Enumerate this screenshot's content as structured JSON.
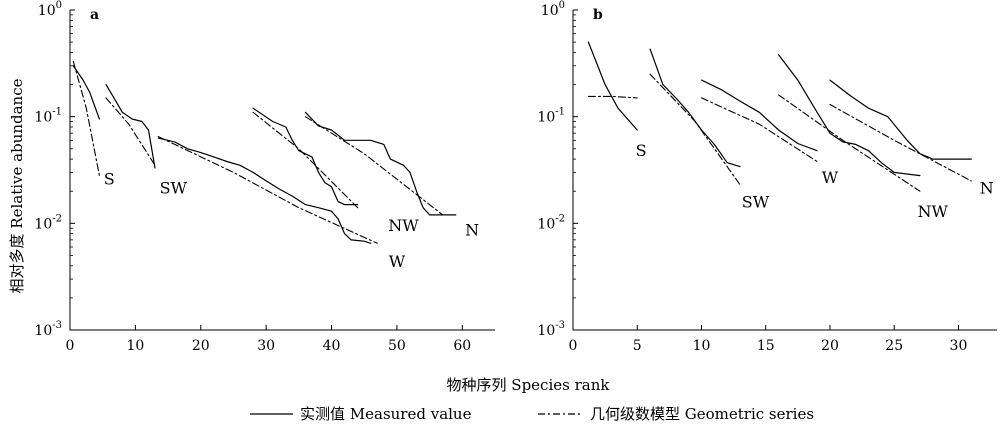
{
  "figure": {
    "ylabel": "相对多度 Relative abundance",
    "xlabel": "物种序列 Species rank",
    "legend": [
      {
        "label": "实测值 Measured value",
        "style": "solid"
      },
      {
        "label": "几何级数模型 Geometric series",
        "style": "dashdot"
      }
    ]
  },
  "chart_data": [
    {
      "type": "line",
      "panel": "a",
      "title": "",
      "xlabel": "物种序列 Species rank",
      "ylabel": "相对多度 Relative abundance",
      "xlim": [
        0,
        65
      ],
      "ylim": [
        0.001,
        1
      ],
      "yscale": "log",
      "xticks": [
        0,
        10,
        20,
        30,
        40,
        50,
        60
      ],
      "yticks": [
        {
          "base": "10",
          "exp": "0"
        },
        {
          "base": "10",
          "exp": "-1"
        },
        {
          "base": "10",
          "exp": "-2"
        },
        {
          "base": "10",
          "exp": "-3"
        }
      ],
      "grid": false,
      "legend_position": "bottom",
      "series": [
        {
          "group": "S",
          "kind": "measured",
          "points": [
            [
              0.5,
              0.3
            ],
            [
              2,
              0.22
            ],
            [
              3,
              0.17
            ],
            [
              4.5,
              0.095
            ]
          ]
        },
        {
          "group": "S",
          "kind": "geometric",
          "points": [
            [
              0.5,
              0.33
            ],
            [
              2.5,
              0.12
            ],
            [
              4.5,
              0.028
            ]
          ]
        },
        {
          "group": "SW",
          "kind": "measured",
          "points": [
            [
              5.5,
              0.2
            ],
            [
              7,
              0.14
            ],
            [
              8,
              0.11
            ],
            [
              9.5,
              0.095
            ],
            [
              11,
              0.09
            ],
            [
              12,
              0.075
            ],
            [
              13,
              0.033
            ]
          ]
        },
        {
          "group": "SW",
          "kind": "geometric",
          "points": [
            [
              5.5,
              0.15
            ],
            [
              9,
              0.085
            ],
            [
              13,
              0.035
            ]
          ]
        },
        {
          "group": "W",
          "kind": "measured",
          "points": [
            [
              13.5,
              0.063
            ],
            [
              16,
              0.058
            ],
            [
              18,
              0.05
            ],
            [
              20,
              0.046
            ],
            [
              22,
              0.042
            ],
            [
              24,
              0.038
            ],
            [
              26,
              0.035
            ],
            [
              28,
              0.03
            ],
            [
              30,
              0.025
            ],
            [
              32,
              0.021
            ],
            [
              34,
              0.018
            ],
            [
              36,
              0.015
            ],
            [
              38,
              0.014
            ],
            [
              40,
              0.013
            ],
            [
              41,
              0.011
            ],
            [
              42,
              0.008
            ],
            [
              43,
              0.007
            ],
            [
              45,
              0.0068
            ],
            [
              46,
              0.0065
            ]
          ]
        },
        {
          "group": "W",
          "kind": "geometric",
          "points": [
            [
              13.5,
              0.065
            ],
            [
              25,
              0.03
            ],
            [
              35,
              0.014
            ],
            [
              47,
              0.0065
            ]
          ]
        },
        {
          "group": "NW",
          "kind": "measured",
          "points": [
            [
              28,
              0.12
            ],
            [
              31,
              0.09
            ],
            [
              33,
              0.08
            ],
            [
              34,
              0.06
            ],
            [
              35,
              0.048
            ],
            [
              37,
              0.042
            ],
            [
              38,
              0.03
            ],
            [
              39,
              0.024
            ],
            [
              40,
              0.022
            ],
            [
              41,
              0.016
            ],
            [
              42,
              0.015
            ],
            [
              43,
              0.015
            ],
            [
              44,
              0.015
            ]
          ]
        },
        {
          "group": "NW",
          "kind": "geometric",
          "points": [
            [
              28,
              0.11
            ],
            [
              35,
              0.05
            ],
            [
              44,
              0.014
            ]
          ]
        },
        {
          "group": "N",
          "kind": "measured",
          "points": [
            [
              36,
              0.11
            ],
            [
              38,
              0.082
            ],
            [
              40,
              0.075
            ],
            [
              42,
              0.06
            ],
            [
              46,
              0.06
            ],
            [
              48,
              0.055
            ],
            [
              49,
              0.04
            ],
            [
              51,
              0.035
            ],
            [
              52,
              0.03
            ],
            [
              53,
              0.02
            ],
            [
              54,
              0.014
            ],
            [
              55,
              0.012
            ],
            [
              59,
              0.012
            ]
          ]
        },
        {
          "group": "N",
          "kind": "geometric",
          "points": [
            [
              36,
              0.1
            ],
            [
              45,
              0.045
            ],
            [
              57,
              0.012
            ]
          ]
        }
      ],
      "labels": [
        {
          "text": "S",
          "x": 6.0,
          "y": 0.023
        },
        {
          "text": "SW",
          "x": 15.8,
          "y": 0.019
        },
        {
          "text": "NW",
          "x": 51.0,
          "y": 0.0085
        },
        {
          "text": "N",
          "x": 61.5,
          "y": 0.0077
        },
        {
          "text": "W",
          "x": 50.0,
          "y": 0.0039
        }
      ]
    },
    {
      "type": "line",
      "panel": "b",
      "title": "",
      "xlabel": "物种序列 Species rank",
      "ylabel": "",
      "xlim": [
        0,
        33
      ],
      "ylim": [
        0.001,
        1
      ],
      "yscale": "log",
      "xticks": [
        0,
        5,
        10,
        15,
        20,
        25,
        30
      ],
      "yticks": [
        {
          "base": "10",
          "exp": "0"
        },
        {
          "base": "10",
          "exp": "-1"
        },
        {
          "base": "10",
          "exp": "-2"
        },
        {
          "base": "10",
          "exp": "-3"
        }
      ],
      "grid": false,
      "legend_position": "bottom",
      "series": [
        {
          "group": "S",
          "kind": "measured",
          "points": [
            [
              1.2,
              0.5
            ],
            [
              2.5,
              0.2
            ],
            [
              3.5,
              0.12
            ],
            [
              5,
              0.075
            ]
          ]
        },
        {
          "group": "S",
          "kind": "geometric",
          "points": [
            [
              1.2,
              0.155
            ],
            [
              3,
              0.155
            ],
            [
              5,
              0.15
            ]
          ]
        },
        {
          "group": "SW",
          "kind": "measured",
          "points": [
            [
              6,
              0.43
            ],
            [
              7,
              0.2
            ],
            [
              8,
              0.15
            ],
            [
              9,
              0.11
            ],
            [
              10,
              0.075
            ],
            [
              11,
              0.055
            ],
            [
              12,
              0.037
            ],
            [
              13,
              0.034
            ]
          ]
        },
        {
          "group": "SW",
          "kind": "geometric",
          "points": [
            [
              6,
              0.25
            ],
            [
              9.5,
              0.09
            ],
            [
              13,
              0.023
            ]
          ]
        },
        {
          "group": "W",
          "kind": "measured",
          "points": [
            [
              10,
              0.22
            ],
            [
              11.5,
              0.18
            ],
            [
              13,
              0.14
            ],
            [
              14.5,
              0.11
            ],
            [
              16,
              0.075
            ],
            [
              17.5,
              0.056
            ],
            [
              19,
              0.048
            ]
          ]
        },
        {
          "group": "W",
          "kind": "geometric",
          "points": [
            [
              10,
              0.15
            ],
            [
              14.5,
              0.085
            ],
            [
              19,
              0.038
            ]
          ]
        },
        {
          "group": "NW",
          "kind": "measured",
          "points": [
            [
              16,
              0.38
            ],
            [
              17.5,
              0.22
            ],
            [
              19,
              0.11
            ],
            [
              20,
              0.07
            ],
            [
              21,
              0.058
            ],
            [
              22,
              0.055
            ],
            [
              23,
              0.048
            ],
            [
              24,
              0.037
            ],
            [
              25,
              0.03
            ],
            [
              27,
              0.028
            ]
          ]
        },
        {
          "group": "NW",
          "kind": "geometric",
          "points": [
            [
              16,
              0.16
            ],
            [
              21,
              0.06
            ],
            [
              27,
              0.02
            ]
          ]
        },
        {
          "group": "N",
          "kind": "measured",
          "points": [
            [
              20,
              0.22
            ],
            [
              21.5,
              0.16
            ],
            [
              23,
              0.12
            ],
            [
              24.5,
              0.1
            ],
            [
              26,
              0.06
            ],
            [
              27,
              0.045
            ],
            [
              28,
              0.04
            ],
            [
              31,
              0.04
            ]
          ]
        },
        {
          "group": "N",
          "kind": "geometric",
          "points": [
            [
              20,
              0.13
            ],
            [
              25,
              0.06
            ],
            [
              31,
              0.025
            ]
          ]
        }
      ],
      "labels": [
        {
          "text": "S",
          "x": 5.3,
          "y": 0.043
        },
        {
          "text": "SW",
          "x": 14.2,
          "y": 0.014
        },
        {
          "text": "W",
          "x": 20.0,
          "y": 0.024
        },
        {
          "text": "NW",
          "x": 28.0,
          "y": 0.0115
        },
        {
          "text": "N",
          "x": 32.2,
          "y": 0.019
        }
      ]
    }
  ]
}
